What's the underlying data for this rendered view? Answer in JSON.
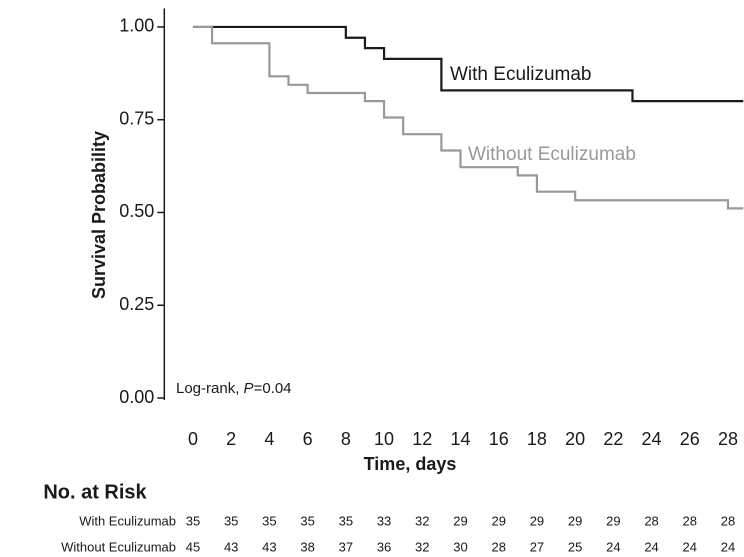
{
  "chart_data": {
    "type": "step",
    "ylabel": "Survival Probability",
    "xlabel": "Time, days",
    "xlim": [
      -1.5,
      28.8
    ],
    "ylim": [
      0,
      1.05
    ],
    "xticks": [
      0,
      2,
      4,
      6,
      8,
      10,
      12,
      14,
      16,
      18,
      20,
      22,
      24,
      26,
      28
    ],
    "yticks": [
      {
        "value": 0,
        "label": "0.00"
      },
      {
        "value": 0.25,
        "label": "0.25"
      },
      {
        "value": 0.5,
        "label": "0.50"
      },
      {
        "value": 0.75,
        "label": "0.75"
      },
      {
        "value": 1,
        "label": "1.00"
      }
    ],
    "annotation": [
      "Log-rank, ",
      "P",
      "=0.04"
    ],
    "series": [
      {
        "name": "With Eculizumab",
        "color": "#1a1a1a",
        "x": [
          0,
          8,
          9,
          10,
          13,
          23
        ],
        "values": [
          1,
          0.971,
          0.943,
          0.914,
          0.829,
          0.8
        ]
      },
      {
        "name": "Without Eculizumab",
        "color": "#999999",
        "x": [
          0,
          1,
          4,
          5,
          6,
          9,
          10,
          11,
          13,
          14,
          17,
          18,
          20,
          28
        ],
        "values": [
          1,
          0.956,
          0.867,
          0.844,
          0.822,
          0.8,
          0.756,
          0.711,
          0.667,
          0.622,
          0.6,
          0.556,
          0.533,
          0.511
        ]
      }
    ],
    "risk_table": {
      "title": "No. at Risk",
      "times": [
        0,
        2,
        4,
        6,
        8,
        10,
        12,
        14,
        16,
        18,
        20,
        22,
        24,
        26,
        28
      ],
      "rows": [
        [
          35,
          35,
          35,
          35,
          35,
          33,
          32,
          29,
          29,
          29,
          29,
          29,
          28,
          28,
          28
        ],
        [
          45,
          43,
          43,
          38,
          37,
          36,
          32,
          30,
          28,
          27,
          25,
          24,
          24,
          24,
          24
        ]
      ]
    }
  }
}
